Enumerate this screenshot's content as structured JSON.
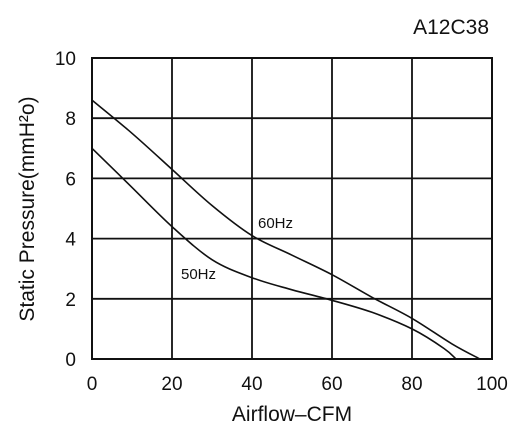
{
  "model": "A12C38",
  "chart_data": {
    "type": "line",
    "title": "A12C38",
    "xlabel": "Airflow–CFM",
    "ylabel": "Static Pressure(mmH²o)",
    "xlim": [
      0,
      100
    ],
    "ylim": [
      0,
      10
    ],
    "xticks": [
      "0",
      "20",
      "40",
      "60",
      "80",
      "100"
    ],
    "yticks": [
      "0",
      "2",
      "4",
      "6",
      "8",
      "10"
    ],
    "grid": true,
    "series": [
      {
        "name": "60Hz",
        "x": [
          0,
          10,
          20,
          30,
          40,
          50,
          60,
          70,
          80,
          90,
          97
        ],
        "y": [
          8.6,
          7.5,
          6.3,
          5.1,
          4.1,
          3.45,
          2.8,
          2.05,
          1.35,
          0.5,
          0
        ]
      },
      {
        "name": "50Hz",
        "x": [
          0,
          10,
          20,
          30,
          40,
          50,
          60,
          70,
          80,
          88,
          91
        ],
        "y": [
          7.0,
          5.7,
          4.4,
          3.3,
          2.7,
          2.3,
          1.95,
          1.55,
          1.0,
          0.35,
          0
        ]
      }
    ]
  }
}
